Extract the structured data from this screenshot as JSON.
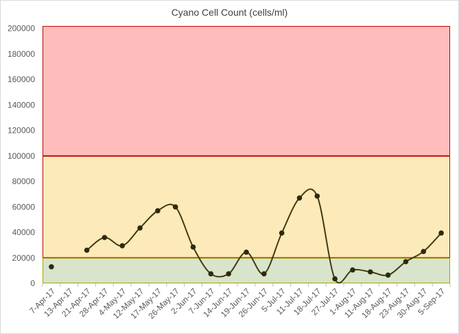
{
  "chart_data": {
    "type": "line",
    "title": "Cyano Cell Count (cells/ml)",
    "xlabel": "",
    "ylabel": "",
    "ylim": [
      0,
      200000
    ],
    "yticks": [
      0,
      20000,
      40000,
      60000,
      80000,
      100000,
      120000,
      140000,
      160000,
      180000,
      200000
    ],
    "grid": false,
    "legend": "none",
    "x": [
      "7-Apr-17",
      "13-Apr-17",
      "21-Apr-17",
      "28-Apr-17",
      "4-May-17",
      "12-May-17",
      "17-May-17",
      "26-May-17",
      "2-Jun-17",
      "7-Jun-17",
      "14-Jun-17",
      "19-Jun-17",
      "26-Jun-17",
      "5-Jul-17",
      "11-Jul-17",
      "18-Jul-17",
      "27-Jul-17",
      "1-Aug-17",
      "11-Aug-17",
      "18-Aug-17",
      "23-Aug-17",
      "30-Aug-17",
      "5-Sep-17"
    ],
    "series": [
      {
        "values": [
          13000,
          null,
          26000,
          36000,
          29500,
          43500,
          57000,
          60000,
          28500,
          7500,
          7500,
          24500,
          7500,
          39500,
          67000,
          68500,
          3500,
          10500,
          9000,
          6500,
          17000,
          25000,
          39500
        ],
        "color": "#403810",
        "smooth": true
      }
    ],
    "bands": [
      {
        "from": 0,
        "to": 20000,
        "color": "#d8e4cc",
        "line": "#a6a600"
      },
      {
        "from": 20000,
        "to": 100000,
        "color": "#fdeab9",
        "line": "#c00000"
      },
      {
        "from": 100000,
        "to": 202000,
        "color": "#ffbcbc",
        "line": "#c00000"
      }
    ]
  }
}
